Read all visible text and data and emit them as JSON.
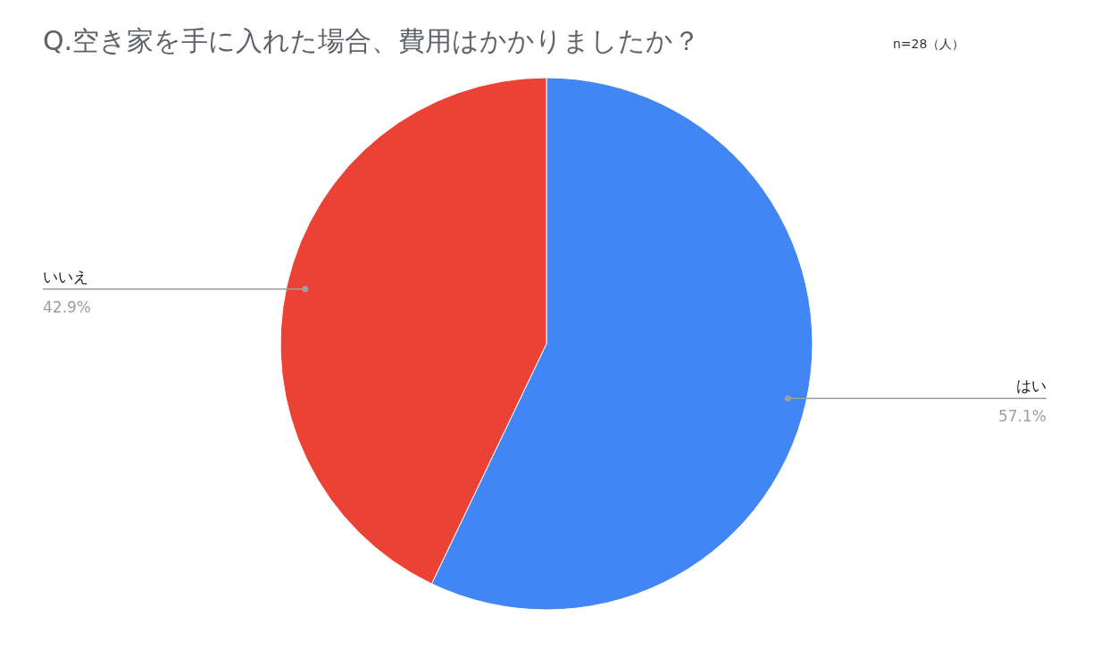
{
  "chart_data": {
    "type": "pie",
    "title": "Q.空き家を手に入れた場合、費用はかかりましたか？",
    "subtitle": "n=28（人）",
    "categories": [
      "はい",
      "いいえ"
    ],
    "values": [
      57.1,
      42.9
    ],
    "colors": [
      "#4285f4",
      "#ea4335"
    ],
    "value_labels": [
      "57.1%",
      "42.9%"
    ]
  }
}
